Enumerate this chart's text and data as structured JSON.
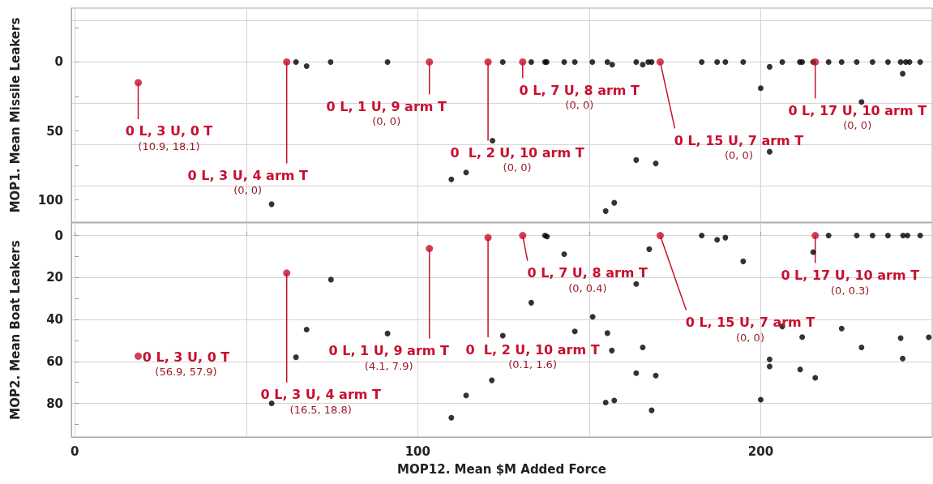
{
  "chart_data": [
    {
      "type": "scatter",
      "ylabel": "MOP1. Mean Missile Leakers",
      "xlim": [
        -1,
        250
      ],
      "ylim": [
        116,
        -39
      ],
      "xticks": [
        0,
        100,
        200
      ],
      "yticks": [
        {
          "value": -25,
          "label": null
        },
        0,
        {
          "value": 25,
          "label": null
        },
        50,
        {
          "value": 75,
          "label": null
        },
        100
      ],
      "grid": true,
      "marker": "circle",
      "tick_labels": "y",
      "series": [
        {
          "color": "#000000",
          "x": [
            57.4,
            64.5,
            67.6,
            74.6,
            91.2,
            109.8,
            114.1,
            121.8,
            124.8,
            133.1,
            137.1,
            137.6,
            142.7,
            145.8,
            150.9,
            155.3,
            156.7,
            154.8,
            157.3,
            163.7,
            163.7,
            165.6,
            167.2,
            168.2,
            169.4,
            182.8,
            187.3,
            189.7,
            194.9,
            200,
            202.6,
            202.6,
            206.3,
            211.4,
            212.1,
            215.3,
            219.8,
            223.6,
            228,
            229.4,
            232.6,
            237.1,
            240.8,
            241.4,
            242.3,
            243.4,
            246.5
          ],
          "values": [
            103,
            0,
            3,
            0,
            0,
            85,
            80,
            57,
            0,
            0,
            0,
            0,
            0,
            0,
            0,
            0,
            2,
            108,
            102,
            0,
            71,
            2,
            0,
            0,
            73.5,
            0,
            0,
            0,
            0,
            19,
            3.5,
            65,
            0,
            0,
            0,
            0,
            0,
            0,
            0,
            29,
            0,
            0,
            0,
            8.5,
            0,
            0,
            0
          ]
        },
        {
          "color": "#c8102e",
          "x": [
            18.5,
            61.8,
            103.4,
            120.5,
            130.6,
            170.7,
            215.9
          ],
          "values": [
            15,
            0,
            0,
            0,
            0,
            0,
            0
          ]
        }
      ],
      "annotations": [
        {
          "text": "0 L, 3 U, 0 T\n(10.9, 18.1)",
          "x": 18.5,
          "y": 15
        },
        {
          "text": "0 L, 3 U, 4 arm T\n(0, 0)",
          "x": 61.8,
          "y": 0
        },
        {
          "text": "0 L, 1 U, 9 arm T\n(0, 0)",
          "x": 103.4,
          "y": 0
        },
        {
          "text": "0  L, 2 U, 10 arm T\n(0, 0)",
          "x": 120.5,
          "y": 0
        },
        {
          "text": "0 L, 7 U, 8 arm T\n(0, 0)",
          "x": 130.6,
          "y": 0
        },
        {
          "text": "0 L, 15 U, 7 arm T\n(0, 0)",
          "x": 170.7,
          "y": 0
        },
        {
          "text": "0 L, 17 U, 10 arm T\n(0, 0)",
          "x": 215.9,
          "y": 0
        }
      ]
    },
    {
      "type": "scatter",
      "xlabel": "MOP12. Mean $M Added Force",
      "ylabel": "MOP2. Mean Boat Leakers",
      "xlim": [
        -1,
        250
      ],
      "ylim": [
        96,
        -6
      ],
      "xticks": [
        0,
        {
          "value": 50,
          "label": null
        },
        100,
        {
          "value": 150,
          "label": null
        },
        200
      ],
      "yticks": [
        0,
        {
          "value": 10,
          "label": null
        },
        20,
        {
          "value": 30,
          "label": null
        },
        40,
        {
          "value": 50,
          "label": null
        },
        60,
        {
          "value": 70,
          "label": null
        },
        80,
        {
          "value": 90,
          "label": null
        }
      ],
      "grid": true,
      "marker": "circle",
      "series": [
        {
          "color": "#000000",
          "x": [
            74.7,
            67.6,
            64.5,
            91.2,
            57.4,
            109.8,
            114.1,
            137.1,
            137.7,
            142.7,
            167.5,
            182.8,
            187.3,
            189.7,
            194.9,
            215.3,
            219.8,
            228,
            232.6,
            237.1,
            241.5,
            242.8,
            246.5,
            163.7,
            133.1,
            151,
            124.8,
            145.8,
            155.3,
            156.6,
            165.6,
            163.7,
            169.4,
            154.8,
            157.3,
            168.2,
            121.6,
            200,
            202.6,
            202.6,
            206.3,
            212.1,
            211.5,
            215.9,
            223.6,
            229.4,
            240.8,
            241.4,
            249
          ],
          "values": [
            21,
            44.8,
            58,
            46.7,
            80,
            86.8,
            76.2,
            0,
            0.5,
            8.9,
            6.5,
            0,
            2,
            1,
            12.3,
            7.9,
            0,
            0,
            0,
            0,
            0,
            0,
            0,
            23.1,
            32,
            38.7,
            47.7,
            45.7,
            46.5,
            54.8,
            53.3,
            65.6,
            66.7,
            79.6,
            78.6,
            83.3,
            69,
            78.2,
            59,
            62.4,
            43.3,
            48.4,
            63.8,
            67.8,
            44.3,
            53.3,
            48.9,
            58.6,
            48.5
          ]
        },
        {
          "color": "#c8102e",
          "x": [
            18.5,
            61.8,
            103.4,
            120.5,
            130.6,
            170.7,
            215.9
          ],
          "values": [
            57.5,
            17.9,
            6.2,
            1,
            0,
            0,
            0
          ]
        }
      ],
      "annotations": [
        {
          "text": "0 L, 3 U, 0 T\n(56.9, 57.9)",
          "x": 18.5,
          "y": 57.5
        },
        {
          "text": "0 L, 3 U, 4 arm T\n(16.5, 18.8)",
          "x": 61.8,
          "y": 17.9
        },
        {
          "text": "0 L, 1 U, 9 arm T\n(4.1, 7.9)",
          "x": 103.4,
          "y": 6.2
        },
        {
          "text": "0  L, 2 U, 10 arm T\n(0.1, 1.6)",
          "x": 120.5,
          "y": 1
        },
        {
          "text": "0 L, 7 U, 8 arm T\n(0, 0.4)",
          "x": 130.6,
          "y": 0
        },
        {
          "text": "0 L, 15 U, 7 arm T\n(0, 0)",
          "x": 170.7,
          "y": 0
        },
        {
          "text": "0 L, 17 U, 10 arm T\n(0, 0.3)",
          "x": 215.9,
          "y": 0
        }
      ]
    }
  ]
}
